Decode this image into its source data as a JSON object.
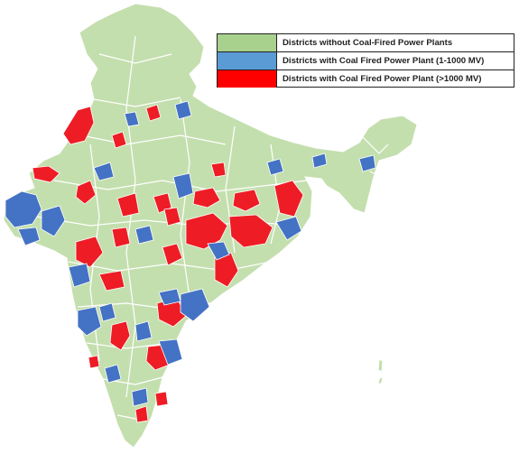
{
  "map": {
    "colors": {
      "land": "#c4dfae",
      "boundary": "#ffffff",
      "low_capacity": "#4472c4",
      "high_capacity": "#ee1c25"
    },
    "legend": {
      "items": [
        {
          "label": "Districts without Coal-Fired Power Plants",
          "color": "#a9d18e"
        },
        {
          "label": "Districts with Coal Fired Power Plant (1-1000 MV)",
          "color": "#5b9bd5"
        },
        {
          "label": "Districts with Coal Fired Power Plant (>1000 MV)",
          "color": "#ff0000"
        }
      ]
    }
  }
}
